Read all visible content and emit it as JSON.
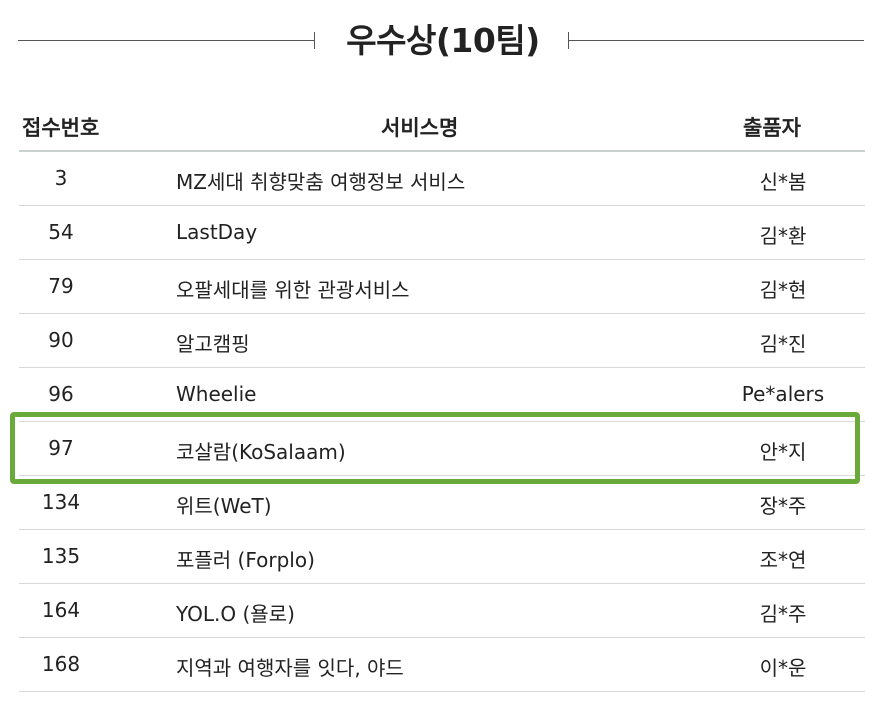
{
  "title": "우수상(10팀)",
  "table": {
    "headers": {
      "number": "접수번호",
      "service": "서비스명",
      "owner": "출품자"
    },
    "rows": [
      {
        "number": "3",
        "service": "MZ세대 취향맞춤 여행정보 서비스",
        "owner": "신*봄"
      },
      {
        "number": "54",
        "service": "LastDay",
        "owner": "김*환"
      },
      {
        "number": "79",
        "service": "오팔세대를 위한 관광서비스",
        "owner": "김*현"
      },
      {
        "number": "90",
        "service": "알고캠핑",
        "owner": "김*진"
      },
      {
        "number": "96",
        "service": "Wheelie",
        "owner": "Pe*alers"
      },
      {
        "number": "97",
        "service": "코살람(KoSalaam)",
        "owner": "안*지"
      },
      {
        "number": "134",
        "service": "위트(WeT)",
        "owner": "장*주"
      },
      {
        "number": "135",
        "service": "포플러 (Forplo)",
        "owner": "조*연"
      },
      {
        "number": "164",
        "service": "YOL.O (욜로)",
        "owner": "김*주"
      },
      {
        "number": "168",
        "service": "지역과 여행자를 잇다, 야드",
        "owner": "이*운"
      }
    ]
  },
  "highlight": {
    "row_number": "97",
    "color": "#6aaa3a"
  }
}
